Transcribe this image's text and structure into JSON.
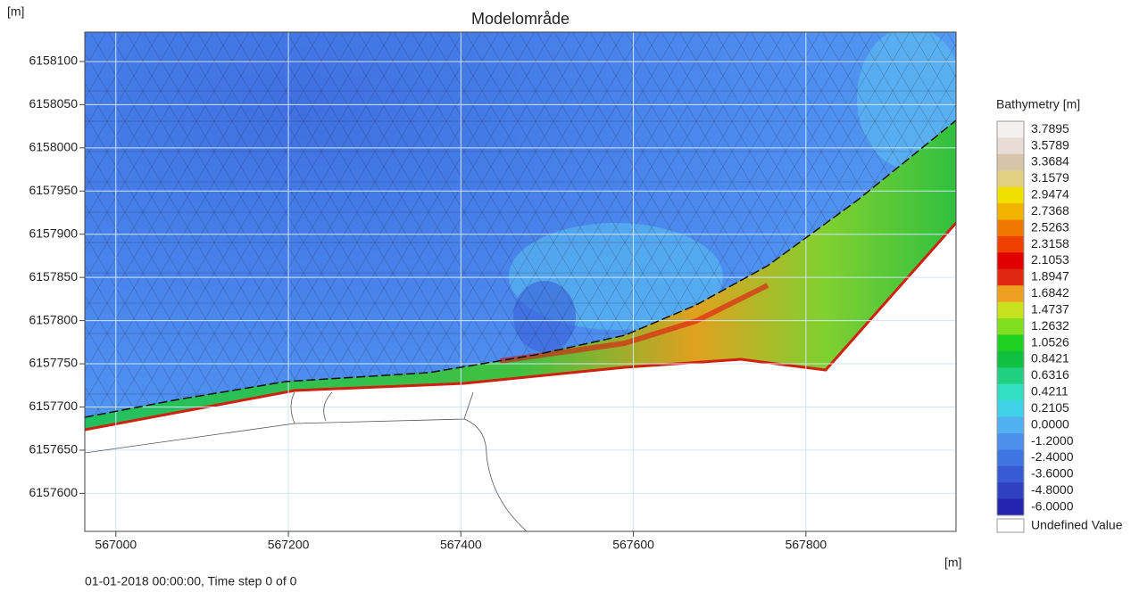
{
  "chart_data": {
    "type": "mesh",
    "title": "Modelområde",
    "y_label": "[m]",
    "x_label": "[m]",
    "xlim": [
      566964,
      567974
    ],
    "xticks": [
      567000,
      567200,
      567400,
      567600,
      567800
    ],
    "ylim": [
      6157556,
      6158134
    ],
    "yticks": [
      6157600,
      6157650,
      6157700,
      6157750,
      6157800,
      6157850,
      6157900,
      6157950,
      6158000,
      6158050,
      6158100
    ],
    "grid": true,
    "grid_color": "#cfe6f5",
    "legend": {
      "title": "Bathymetry [m]",
      "labels": [
        "3.7895",
        "3.5789",
        "3.3684",
        "3.1579",
        "2.9474",
        "2.7368",
        "2.5263",
        "2.3158",
        "2.1053",
        "1.8947",
        "1.6842",
        "1.4737",
        "1.2632",
        "1.0526",
        "0.8421",
        "0.6316",
        "0.4211",
        "0.2105",
        "0.0000",
        "-1.2000",
        "-2.4000",
        "-3.6000",
        "-4.8000",
        "-6.0000"
      ],
      "colors": [
        "#f4f0f0",
        "#e8dcd6",
        "#d8c4a8",
        "#e0d080",
        "#f0e000",
        "#f0b400",
        "#f07800",
        "#f04000",
        "#e00000",
        "#e02810",
        "#f0a020",
        "#c8e020",
        "#80e020",
        "#20d020",
        "#10c040",
        "#20d080",
        "#30e0c0",
        "#40d0e8",
        "#50b0f0",
        "#4c90ec",
        "#4074e0",
        "#385ad2",
        "#3040c0",
        "#2424b0"
      ],
      "undefined_label": "Undefined Value"
    },
    "footer": "01-01-2018 00:00:00, Time step 0 of 0"
  }
}
